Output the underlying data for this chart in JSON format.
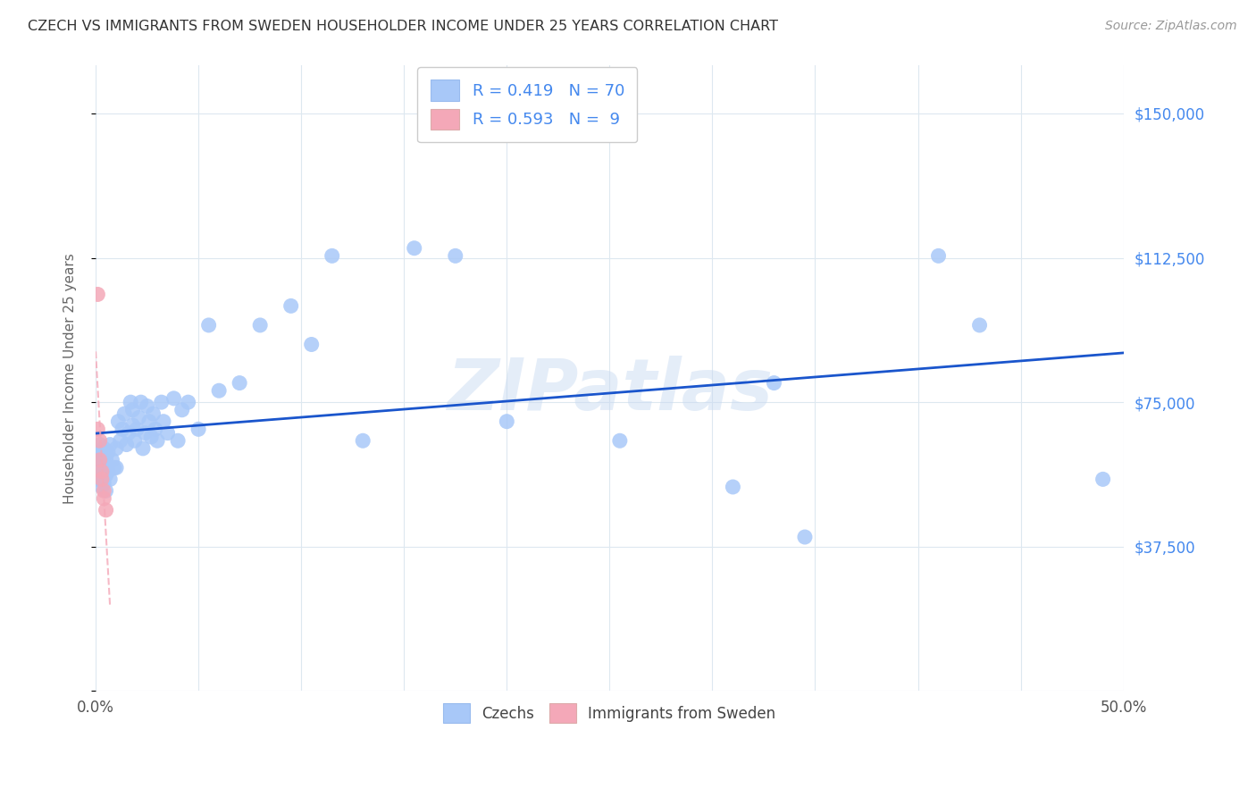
{
  "title": "CZECH VS IMMIGRANTS FROM SWEDEN HOUSEHOLDER INCOME UNDER 25 YEARS CORRELATION CHART",
  "source": "Source: ZipAtlas.com",
  "ylabel": "Householder Income Under 25 years",
  "xlim": [
    0.0,
    0.5
  ],
  "ylim": [
    0,
    162500
  ],
  "xticks": [
    0.0,
    0.05,
    0.1,
    0.15,
    0.2,
    0.25,
    0.3,
    0.35,
    0.4,
    0.45,
    0.5
  ],
  "xticklabels": [
    "0.0%",
    "",
    "",
    "",
    "",
    "",
    "",
    "",
    "",
    "",
    "50.0%"
  ],
  "ytick_positions": [
    0,
    37500,
    75000,
    112500,
    150000
  ],
  "ytick_labels": [
    "",
    "$37,500",
    "$75,000",
    "$112,500",
    "$150,000"
  ],
  "R_czech": 0.419,
  "N_czech": 70,
  "R_sweden": 0.593,
  "N_sweden": 9,
  "color_czech": "#a8c8f8",
  "color_sweden": "#f4a8b8",
  "color_text_blue": "#4488ee",
  "color_line_czech": "#1a55cc",
  "color_line_sweden": "#f4a8b8",
  "watermark": "ZIPatlas",
  "czech_x": [
    0.001,
    0.001,
    0.001,
    0.002,
    0.002,
    0.002,
    0.003,
    0.003,
    0.003,
    0.004,
    0.004,
    0.004,
    0.005,
    0.005,
    0.005,
    0.006,
    0.006,
    0.007,
    0.007,
    0.008,
    0.009,
    0.01,
    0.01,
    0.011,
    0.012,
    0.013,
    0.014,
    0.015,
    0.016,
    0.017,
    0.018,
    0.018,
    0.019,
    0.02,
    0.021,
    0.022,
    0.023,
    0.024,
    0.025,
    0.026,
    0.027,
    0.028,
    0.029,
    0.03,
    0.032,
    0.033,
    0.035,
    0.038,
    0.04,
    0.042,
    0.045,
    0.05,
    0.055,
    0.06,
    0.07,
    0.08,
    0.095,
    0.105,
    0.115,
    0.13,
    0.155,
    0.175,
    0.2,
    0.255,
    0.31,
    0.33,
    0.345,
    0.41,
    0.43,
    0.49
  ],
  "czech_y": [
    55000,
    58000,
    62000,
    56000,
    60000,
    64000,
    53000,
    57000,
    61000,
    54000,
    59000,
    63000,
    52000,
    56000,
    60000,
    57000,
    62000,
    55000,
    64000,
    60000,
    58000,
    63000,
    58000,
    70000,
    65000,
    68000,
    72000,
    64000,
    67000,
    75000,
    69000,
    73000,
    65000,
    68000,
    71000,
    75000,
    63000,
    67000,
    74000,
    70000,
    66000,
    72000,
    68000,
    65000,
    75000,
    70000,
    67000,
    76000,
    65000,
    73000,
    75000,
    68000,
    95000,
    78000,
    80000,
    95000,
    100000,
    90000,
    113000,
    65000,
    115000,
    113000,
    70000,
    65000,
    53000,
    80000,
    40000,
    113000,
    95000,
    55000
  ],
  "sweden_x": [
    0.001,
    0.001,
    0.002,
    0.002,
    0.003,
    0.003,
    0.004,
    0.004,
    0.005
  ],
  "sweden_y": [
    103000,
    68000,
    65000,
    60000,
    57000,
    55000,
    52000,
    50000,
    47000
  ],
  "grid_color": "#dde8f0",
  "bg_color": "#ffffff"
}
